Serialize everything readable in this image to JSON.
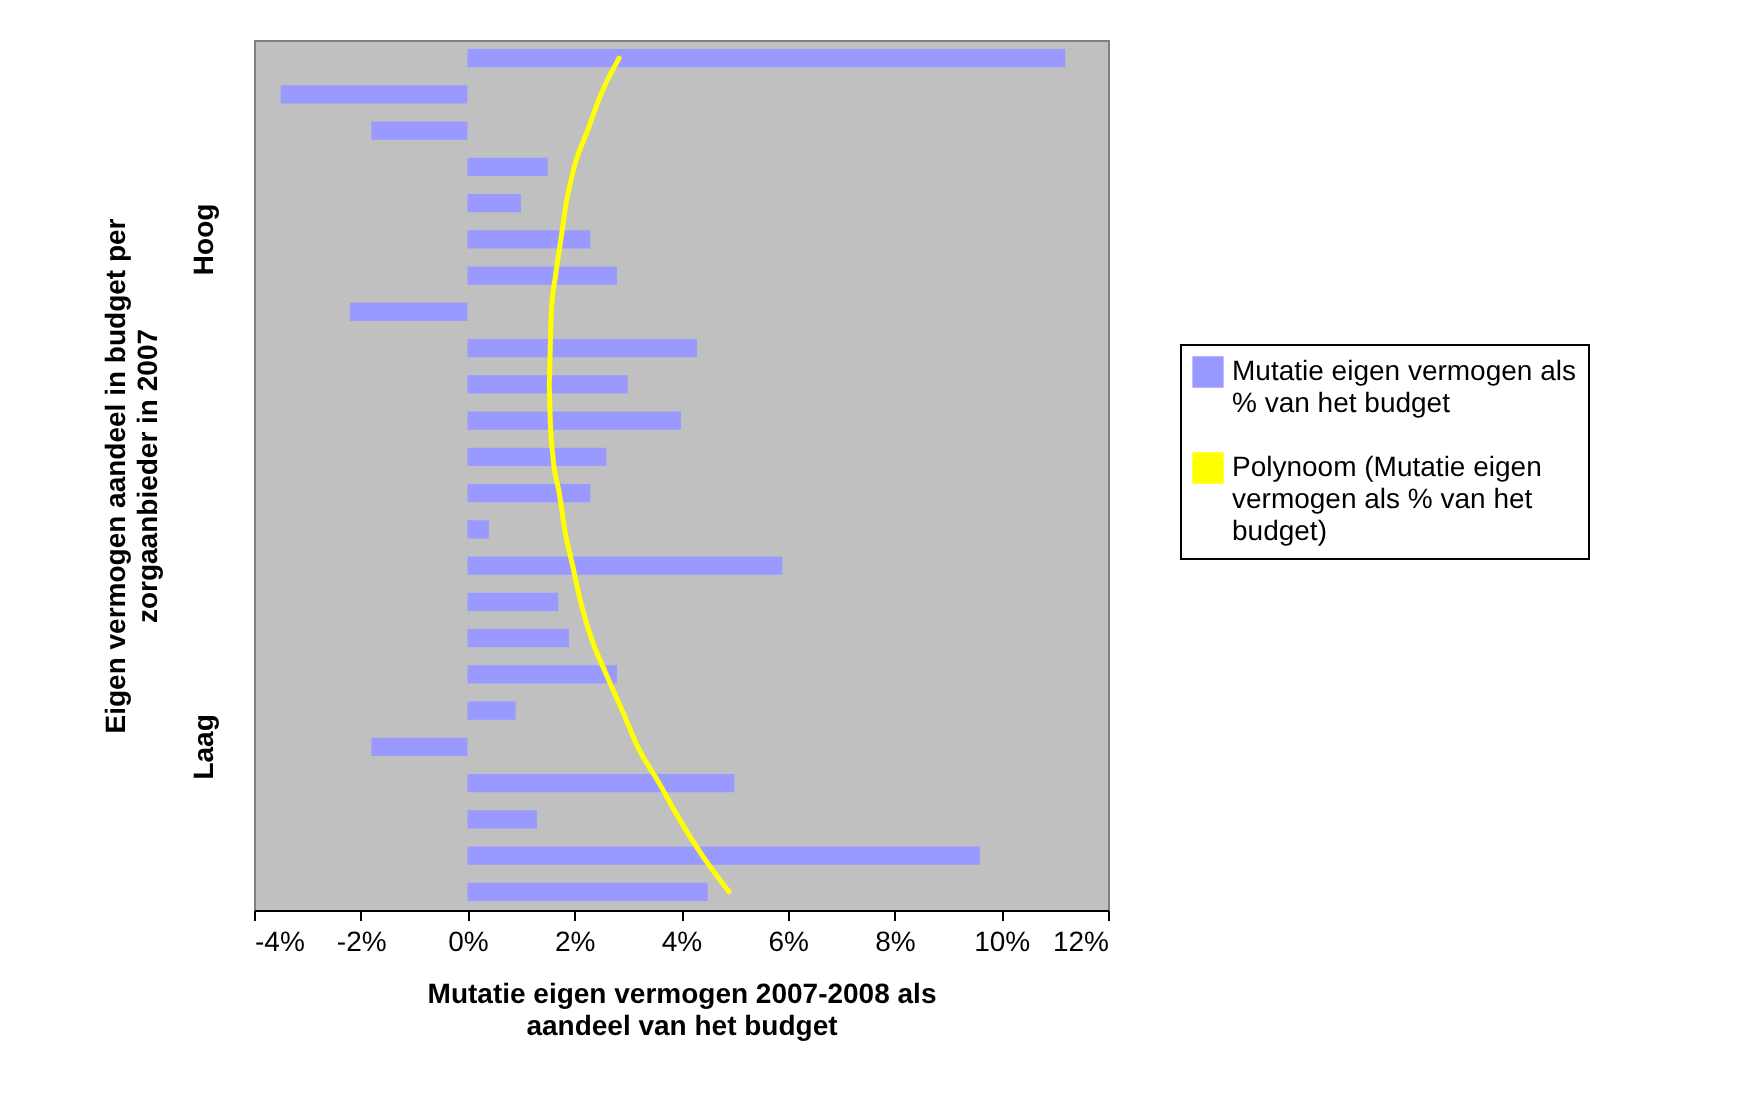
{
  "chart_data": {
    "type": "bar",
    "orientation": "horizontal",
    "xlabel": "Mutatie eigen vermogen 2007-2008 als aandeel van het budget",
    "ylabel": "Eigen vermogen aandeel in budget per zorgaanbieder in 2007",
    "categories": [
      null,
      null,
      null,
      null,
      null,
      "Hoog",
      null,
      null,
      null,
      null,
      null,
      null,
      null,
      null,
      null,
      null,
      null,
      null,
      null,
      "Laag",
      null,
      null,
      null,
      null
    ],
    "series": [
      {
        "name": "Mutatie eigen vermogen als % van het budget",
        "color": "#9999ff",
        "values": [
          11.2,
          -3.5,
          -1.8,
          1.5,
          1.0,
          2.3,
          2.8,
          -2.2,
          4.3,
          3.0,
          4.0,
          2.6,
          2.3,
          0.4,
          5.9,
          1.7,
          1.9,
          2.8,
          0.9,
          -1.8,
          5.0,
          1.3,
          9.6,
          4.5
        ]
      },
      {
        "name": "Polynoom (Mutatie eigen vermogen als % van het budget)",
        "type": "line",
        "color": "#ffff00",
        "values": [
          2.84,
          2.5,
          2.25,
          2.0,
          1.85,
          1.75,
          1.65,
          1.57,
          1.55,
          1.53,
          1.55,
          1.6,
          1.72,
          1.82,
          1.97,
          2.12,
          2.32,
          2.6,
          2.9,
          3.19,
          3.59,
          3.97,
          4.4,
          4.9
        ]
      }
    ],
    "xlim": [
      -4,
      12
    ],
    "xticks": [
      {
        "value": -4,
        "label": "-4%"
      },
      {
        "value": -2,
        "label": "-2%"
      },
      {
        "value": 0,
        "label": "0%"
      },
      {
        "value": 2,
        "label": "2%"
      },
      {
        "value": 4,
        "label": "4%"
      },
      {
        "value": 6,
        "label": "6%"
      },
      {
        "value": 8,
        "label": "8%"
      },
      {
        "value": 10,
        "label": "10%"
      },
      {
        "value": 12,
        "label": "12%"
      }
    ],
    "grid": false,
    "legend": "right"
  }
}
